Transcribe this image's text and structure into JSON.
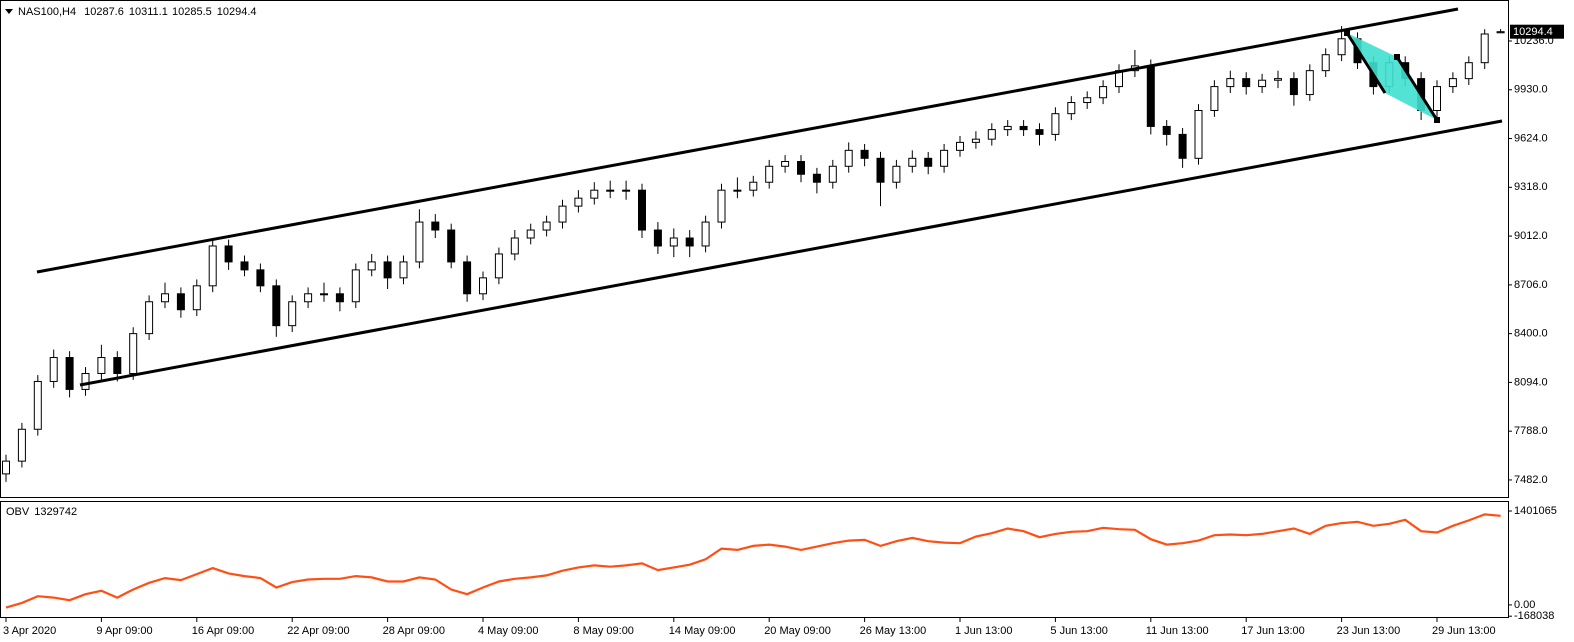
{
  "chart_data": [
    {
      "type": "candlestick",
      "title": "NAS100,H4",
      "categories": [
        "3 Apr 2020",
        null,
        null,
        null,
        null,
        null,
        "9 Apr 09:00",
        null,
        null,
        null,
        null,
        null,
        "16 Apr 09:00",
        null,
        null,
        null,
        null,
        null,
        "22 Apr 09:00",
        null,
        null,
        null,
        null,
        null,
        "28 Apr 09:00",
        null,
        null,
        null,
        null,
        null,
        "4 May 09:00",
        null,
        null,
        null,
        null,
        null,
        "8 May 09:00",
        null,
        null,
        null,
        null,
        null,
        "14 May 09:00",
        null,
        null,
        null,
        null,
        null,
        "20 May 09:00",
        null,
        null,
        null,
        null,
        null,
        "26 May 13:00",
        null,
        null,
        null,
        null,
        null,
        "1 Jun 13:00",
        null,
        null,
        null,
        null,
        null,
        "5 Jun 13:00",
        null,
        null,
        null,
        null,
        null,
        "11 Jun 13:00",
        null,
        null,
        null,
        null,
        null,
        "17 Jun 13:00",
        null,
        null,
        null,
        null,
        null,
        "23 Jun 13:00",
        null,
        null,
        null,
        null,
        null,
        "29 Jun 13:00",
        null,
        null,
        null,
        null
      ],
      "open": [
        7520,
        7600,
        7800,
        8100,
        8250,
        8050,
        8150,
        8250,
        8150,
        8400,
        8600,
        8650,
        8550,
        8700,
        8950,
        8850,
        8800,
        8700,
        8450,
        8600,
        8650,
        8650,
        8600,
        8800,
        8850,
        8750,
        8850,
        9100,
        9050,
        8850,
        8650,
        8750,
        8900,
        9000,
        9050,
        9100,
        9200,
        9250,
        9300,
        9300,
        9300,
        9050,
        8950,
        9000,
        8950,
        9100,
        9300,
        9300,
        9350,
        9450,
        9480,
        9400,
        9350,
        9450,
        9550,
        9500,
        9350,
        9450,
        9500,
        9450,
        9550,
        9600,
        9620,
        9680,
        9700,
        9680,
        9650,
        9780,
        9850,
        9880,
        9950,
        10050,
        10080,
        9700,
        9650,
        9500,
        9800,
        9950,
        10000,
        9950,
        9990,
        10000,
        9900,
        10050,
        10150,
        10250,
        10100,
        9950,
        10100,
        10000,
        9800,
        9950,
        10000,
        10100,
        10287.6
      ],
      "high": [
        7640,
        7840,
        8140,
        8300,
        8290,
        8190,
        8330,
        8290,
        8440,
        8640,
        8720,
        8690,
        8740,
        9000,
        8990,
        8890,
        8840,
        8740,
        8640,
        8690,
        8720,
        8690,
        8840,
        8900,
        8890,
        8890,
        9180,
        9150,
        9090,
        8890,
        8790,
        8940,
        9050,
        9090,
        9140,
        9240,
        9300,
        9350,
        9360,
        9360,
        9340,
        9100,
        9060,
        9050,
        9140,
        9340,
        9380,
        9390,
        9490,
        9520,
        9520,
        9440,
        9490,
        9600,
        9590,
        9540,
        9490,
        9550,
        9540,
        9590,
        9640,
        9670,
        9720,
        9740,
        9740,
        9720,
        9820,
        9890,
        9920,
        9990,
        10090,
        10180,
        10120,
        9740,
        9690,
        9840,
        9990,
        10050,
        10040,
        10030,
        10050,
        10040,
        10090,
        10190,
        10330,
        10290,
        10140,
        10140,
        10140,
        10040,
        9990,
        10040,
        10140,
        10310,
        10311.1
      ],
      "low": [
        7470,
        7560,
        7760,
        8060,
        8000,
        8010,
        8110,
        8100,
        8110,
        8360,
        8560,
        8500,
        8510,
        8660,
        8800,
        8760,
        8660,
        8380,
        8410,
        8560,
        8600,
        8540,
        8560,
        8760,
        8680,
        8710,
        8810,
        9000,
        8810,
        8600,
        8610,
        8710,
        8860,
        8960,
        9010,
        9060,
        9160,
        9210,
        9250,
        9240,
        9000,
        8900,
        8880,
        8880,
        8910,
        9060,
        9250,
        9260,
        9310,
        9410,
        9350,
        9280,
        9310,
        9410,
        9450,
        9200,
        9310,
        9410,
        9400,
        9410,
        9510,
        9560,
        9580,
        9640,
        9640,
        9580,
        9610,
        9740,
        9810,
        9840,
        9910,
        10010,
        9650,
        9580,
        9440,
        9460,
        9760,
        9910,
        9900,
        9910,
        9940,
        9830,
        9860,
        10010,
        10110,
        10060,
        9900,
        9910,
        9950,
        9740,
        9760,
        9910,
        9960,
        10060,
        10285.5
      ],
      "close": [
        7600,
        7800,
        8100,
        8250,
        8050,
        8150,
        8250,
        8150,
        8400,
        8600,
        8650,
        8550,
        8700,
        8950,
        8850,
        8800,
        8700,
        8450,
        8600,
        8650,
        8650,
        8600,
        8800,
        8850,
        8750,
        8850,
        9100,
        9050,
        8850,
        8650,
        8750,
        8900,
        9000,
        9050,
        9100,
        9200,
        9250,
        9300,
        9300,
        9300,
        9050,
        8950,
        9000,
        8950,
        9100,
        9300,
        9300,
        9350,
        9450,
        9480,
        9400,
        9350,
        9450,
        9550,
        9500,
        9350,
        9450,
        9500,
        9450,
        9550,
        9600,
        9620,
        9680,
        9700,
        9680,
        9650,
        9780,
        9850,
        9880,
        9950,
        10050,
        10080,
        9700,
        9650,
        9500,
        9800,
        9950,
        10000,
        9950,
        9990,
        10000,
        9900,
        10050,
        10150,
        10250,
        10100,
        9950,
        10100,
        10000,
        9800,
        9950,
        10000,
        10100,
        10280,
        10294.4
      ],
      "up_color": "#ffffff",
      "down_color": "#000000",
      "color": "#000000",
      "ylim": [
        7375,
        10487
      ],
      "yticks": [
        {
          "value": 7482,
          "label": "7482.0"
        },
        {
          "value": 7788,
          "label": "7788.0"
        },
        {
          "value": 8094,
          "label": "8094.0"
        },
        {
          "value": 8400,
          "label": "8400.0"
        },
        {
          "value": 8706,
          "label": "8706.0"
        },
        {
          "value": 9012,
          "label": "9012.0"
        },
        {
          "value": 9318,
          "label": "9318.0"
        },
        {
          "value": 9624,
          "label": "9624.0"
        },
        {
          "value": 9930,
          "label": "9930.0"
        },
        {
          "value": 10236,
          "label": "10236.0"
        }
      ],
      "grid": false
    },
    {
      "type": "line",
      "title": "OBV",
      "color": "#ff4f14",
      "values": [
        -40000,
        30000,
        130000,
        110000,
        70000,
        160000,
        210000,
        110000,
        230000,
        330000,
        400000,
        370000,
        460000,
        550000,
        470000,
        430000,
        400000,
        260000,
        340000,
        380000,
        390000,
        390000,
        430000,
        410000,
        350000,
        350000,
        410000,
        380000,
        230000,
        160000,
        260000,
        350000,
        390000,
        410000,
        440000,
        510000,
        560000,
        590000,
        570000,
        590000,
        620000,
        520000,
        560000,
        600000,
        680000,
        840000,
        820000,
        880000,
        900000,
        870000,
        820000,
        870000,
        920000,
        960000,
        970000,
        880000,
        950000,
        1000000,
        950000,
        930000,
        920000,
        1020000,
        1070000,
        1140000,
        1100000,
        1010000,
        1060000,
        1090000,
        1100000,
        1150000,
        1130000,
        1120000,
        980000,
        900000,
        920000,
        960000,
        1040000,
        1050000,
        1040000,
        1060000,
        1100000,
        1140000,
        1060000,
        1180000,
        1220000,
        1240000,
        1180000,
        1210000,
        1270000,
        1100000,
        1080000,
        1180000,
        1260000,
        1350000,
        1329742
      ],
      "ylim": [
        -180000,
        1550000
      ],
      "yticks": [
        -168038,
        {
          "value": 0,
          "label": "0.00"
        },
        1401065
      ],
      "grid": false
    }
  ]
}
